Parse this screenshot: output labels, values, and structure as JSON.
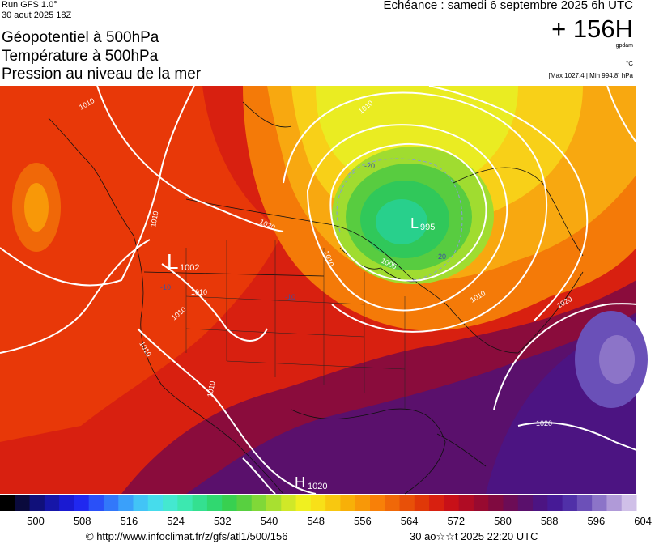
{
  "header": {
    "run": "Run GFS 1.0°",
    "date": "30 aout 2025 18Z",
    "params": [
      "Géopotentiel à 500hPa",
      "Température à 500hPa",
      "Pression au niveau de la mer"
    ],
    "echeance": "Echéance : samedi 6 septembre 2025 6h UTC",
    "hour": "+ 156H",
    "unit_geo": "gpdam",
    "unit_temp": "°C",
    "pressure_range": "[Max 1027.4 | Min 994.8] hPa"
  },
  "map": {
    "pressure_labels": {
      "l1": "L",
      "l1_val": "1002",
      "l2": "L",
      "l2_val": "995",
      "h1": "H",
      "h1_val": "1020"
    },
    "isobar_labels": [
      "1010",
      "1020",
      "1010",
      "1010",
      "1010",
      "1010",
      "1010",
      "1010",
      "1010",
      "1010",
      "1020",
      "1020",
      "1005"
    ],
    "temp_labels": [
      "-20",
      "-20",
      "-10",
      "-10"
    ]
  },
  "scale": {
    "colors": [
      "#000000",
      "#0a0a3c",
      "#10107a",
      "#1616a8",
      "#1a1ad2",
      "#2028f0",
      "#2a50f8",
      "#3278fa",
      "#3aa0fa",
      "#42c4f6",
      "#46dcec",
      "#44e8d0",
      "#3ce8b0",
      "#34e090",
      "#30d870",
      "#38d050",
      "#58d040",
      "#80d838",
      "#a8e030",
      "#d0e828",
      "#f0f020",
      "#f8e018",
      "#f8c810",
      "#f8b008",
      "#f89808",
      "#f88008",
      "#f06808",
      "#e85008",
      "#e03808",
      "#d82010",
      "#c81018",
      "#b00c24",
      "#980a30",
      "#800a40",
      "#6c0c56",
      "#5a106c",
      "#4c1482",
      "#461a96",
      "#5030a8",
      "#6c50b8",
      "#8c74c8",
      "#b09ad8",
      "#d0c0e8"
    ],
    "ticks": [
      "500",
      "508",
      "516",
      "524",
      "532",
      "540",
      "548",
      "556",
      "564",
      "572",
      "580",
      "588",
      "596",
      "604"
    ]
  },
  "footer": {
    "copyright": "© http://www.infoclimat.fr/z/gfs/atl1/500/156",
    "generated": "30 ao☆☆t 2025 22:20 UTC"
  }
}
